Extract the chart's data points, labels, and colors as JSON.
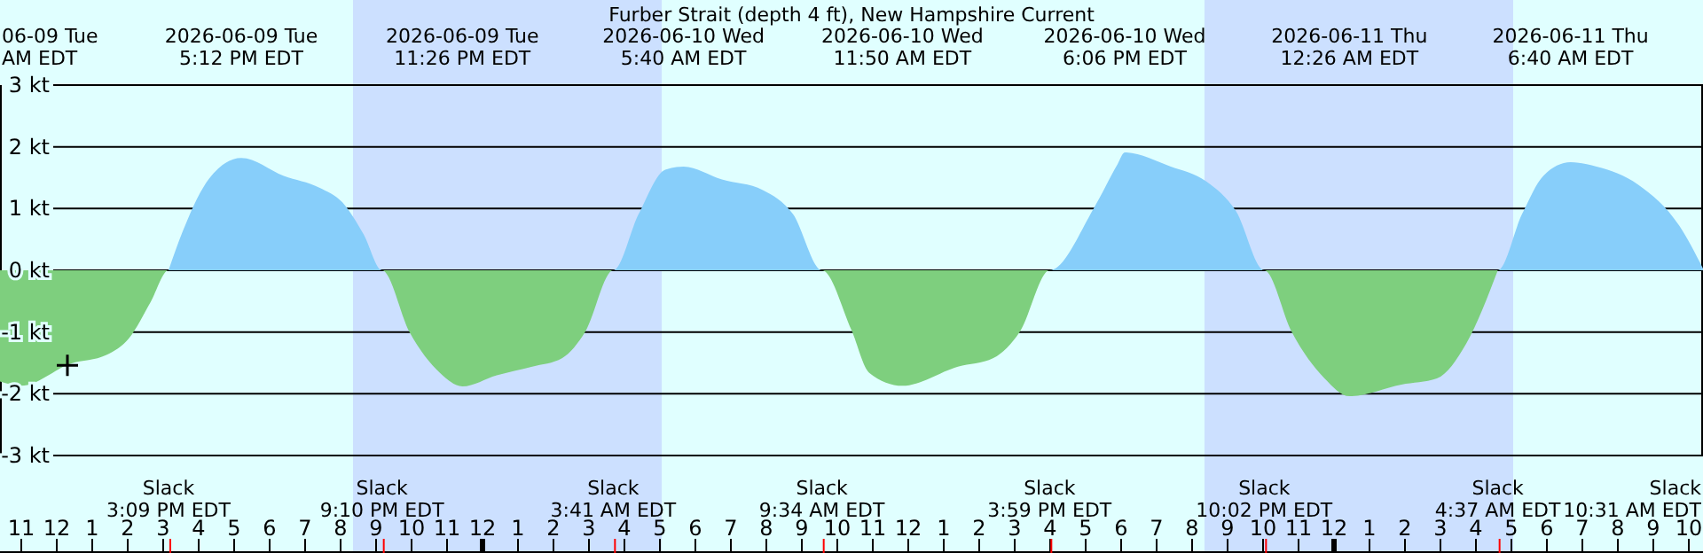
{
  "chart_data": {
    "type": "area",
    "title": "Furber Strait (depth 4 ft), New Hampshire Current",
    "xlim": [
      "2026-06-09T10:24",
      "2026-06-11T10:24"
    ],
    "ylim": [
      -3,
      3
    ],
    "xticks": [
      {
        "value": "2026-06-09T11:00",
        "label": "11"
      },
      {
        "value": "2026-06-09T12:00",
        "label": "12"
      },
      {
        "value": "2026-06-09T13:00",
        "label": "1"
      },
      {
        "value": "2026-06-09T14:00",
        "label": "2"
      },
      {
        "value": "2026-06-09T15:00",
        "label": "3"
      },
      {
        "value": "2026-06-09T16:00",
        "label": "4"
      },
      {
        "value": "2026-06-09T17:00",
        "label": "5"
      },
      {
        "value": "2026-06-09T18:00",
        "label": "6"
      },
      {
        "value": "2026-06-09T19:00",
        "label": "7"
      },
      {
        "value": "2026-06-09T20:00",
        "label": "8"
      },
      {
        "value": "2026-06-09T21:00",
        "label": "9"
      },
      {
        "value": "2026-06-09T22:00",
        "label": "10"
      },
      {
        "value": "2026-06-09T23:00",
        "label": "11"
      },
      {
        "value": "2026-06-10T00:00",
        "label": "12"
      },
      {
        "value": "2026-06-10T01:00",
        "label": "1"
      },
      {
        "value": "2026-06-10T02:00",
        "label": "2"
      },
      {
        "value": "2026-06-10T03:00",
        "label": "3"
      },
      {
        "value": "2026-06-10T04:00",
        "label": "4"
      },
      {
        "value": "2026-06-10T05:00",
        "label": "5"
      },
      {
        "value": "2026-06-10T06:00",
        "label": "6"
      },
      {
        "value": "2026-06-10T07:00",
        "label": "7"
      },
      {
        "value": "2026-06-10T08:00",
        "label": "8"
      },
      {
        "value": "2026-06-10T09:00",
        "label": "9"
      },
      {
        "value": "2026-06-10T10:00",
        "label": "10"
      },
      {
        "value": "2026-06-10T11:00",
        "label": "11"
      },
      {
        "value": "2026-06-10T12:00",
        "label": "12"
      },
      {
        "value": "2026-06-10T13:00",
        "label": "1"
      },
      {
        "value": "2026-06-10T14:00",
        "label": "2"
      },
      {
        "value": "2026-06-10T15:00",
        "label": "3"
      },
      {
        "value": "2026-06-10T16:00",
        "label": "4"
      },
      {
        "value": "2026-06-10T17:00",
        "label": "5"
      },
      {
        "value": "2026-06-10T18:00",
        "label": "6"
      },
      {
        "value": "2026-06-10T19:00",
        "label": "7"
      },
      {
        "value": "2026-06-10T20:00",
        "label": "8"
      },
      {
        "value": "2026-06-10T21:00",
        "label": "9"
      },
      {
        "value": "2026-06-10T22:00",
        "label": "10"
      },
      {
        "value": "2026-06-10T23:00",
        "label": "11"
      },
      {
        "value": "2026-06-11T00:00",
        "label": "12"
      },
      {
        "value": "2026-06-11T01:00",
        "label": "1"
      },
      {
        "value": "2026-06-11T02:00",
        "label": "2"
      },
      {
        "value": "2026-06-11T03:00",
        "label": "3"
      },
      {
        "value": "2026-06-11T04:00",
        "label": "4"
      },
      {
        "value": "2026-06-11T05:00",
        "label": "5"
      },
      {
        "value": "2026-06-11T06:00",
        "label": "6"
      },
      {
        "value": "2026-06-11T07:00",
        "label": "7"
      },
      {
        "value": "2026-06-11T08:00",
        "label": "8"
      },
      {
        "value": "2026-06-11T09:00",
        "label": "9"
      },
      {
        "value": "2026-06-11T10:00",
        "label": "10"
      }
    ],
    "x2lim": [
      "2026-06-09T10:24",
      "2026-06-11T10:24"
    ],
    "x2ticks": [
      {
        "value": "2026-06-09T17:12",
        "label": "2026-06-09 Tue\n5:12 PM EDT"
      },
      {
        "value": "2026-06-09T23:26",
        "label": "2026-06-09 Tue\n11:26 PM EDT"
      },
      {
        "value": "2026-06-10T05:40",
        "label": "2026-06-10 Wed\n5:40 AM EDT"
      },
      {
        "value": "2026-06-10T11:50",
        "label": "2026-06-10 Wed\n11:50 AM EDT"
      },
      {
        "value": "2026-06-10T18:06",
        "label": "2026-06-10 Wed\n6:06 PM EDT"
      },
      {
        "value": "2026-06-11T00:26",
        "label": "2026-06-11 Thu\n12:26 AM EDT"
      },
      {
        "value": "2026-06-11T06:40",
        "label": "2026-06-11 Thu\n6:40 AM EDT"
      }
    ],
    "yticks": [
      {
        "value": -3,
        "label": "-3 kt"
      },
      {
        "value": -2,
        "label": "-2 kt"
      },
      {
        "value": -1,
        "label": "-1 kt"
      },
      {
        "value": 0,
        "label": "0 kt"
      },
      {
        "value": 1,
        "label": "1 kt"
      },
      {
        "value": 2,
        "label": "2 kt"
      },
      {
        "value": 3,
        "label": "3 kt"
      }
    ],
    "grid": "y",
    "bands": [
      {
        "axis": "x",
        "from": "2026-06-09T20:21",
        "to": "2026-06-10T05:03",
        "color": "#cce0ff"
      },
      {
        "axis": "x",
        "from": "2026-06-10T20:21",
        "to": "2026-06-11T05:03",
        "color": "#cce0ff"
      }
    ],
    "series": [
      {
        "color": "#87cefa",
        "x": [
          "2026-06-09T15:09",
          "2026-06-09T15:33",
          "2026-06-09T16:18",
          "2026-06-09T17:12",
          "2026-06-09T18:24",
          "2026-06-09T19:24",
          "2026-06-09T20:03",
          "2026-06-09T20:39",
          "2026-06-09T21:10",
          "2026-06-10T03:41",
          "2026-06-10T04:24",
          "2026-06-10T05:09",
          "2026-06-10T05:40",
          "2026-06-10T06:45",
          "2026-06-10T07:54",
          "2026-06-10T08:45",
          "2026-06-10T09:34",
          "2026-06-10T15:59",
          "2026-06-10T17:14",
          "2026-06-10T17:54",
          "2026-06-10T18:06",
          "2026-06-10T19:24",
          "2026-06-10T20:24",
          "2026-06-10T21:14",
          "2026-06-10T22:02",
          "2026-06-11T04:37",
          "2026-06-11T05:18",
          "2026-06-11T05:54",
          "2026-06-11T06:40",
          "2026-06-11T07:24",
          "2026-06-11T08:34",
          "2026-06-11T09:44",
          "2026-06-11T10:24"
        ],
        "values": [
          0,
          0.63,
          1.49,
          1.82,
          1.53,
          1.34,
          1.1,
          0.58,
          0,
          0,
          0.91,
          1.63,
          1.68,
          1.47,
          1.3,
          0.91,
          0,
          0,
          1.01,
          1.72,
          1.91,
          1.68,
          1.44,
          0.96,
          0,
          0,
          0.91,
          1.53,
          1.75,
          1.68,
          1.39,
          0.72,
          0.03
        ]
      },
      {
        "color": "#7ecf7e",
        "x": [
          "2026-06-09T10:24",
          "2026-06-09T11:00",
          "2026-06-09T12:24",
          "2026-06-09T13:24",
          "2026-06-09T14:03",
          "2026-06-09T14:39",
          "2026-06-09T15:09",
          "2026-06-09T21:10",
          "2026-06-09T21:57",
          "2026-06-09T22:48",
          "2026-06-09T23:26",
          "2026-06-10T00:24",
          "2026-06-10T01:24",
          "2026-06-10T02:15",
          "2026-06-10T02:54",
          "2026-06-10T03:41",
          "2026-06-10T09:34",
          "2026-06-10T10:24",
          "2026-06-10T10:54",
          "2026-06-10T11:50",
          "2026-06-10T13:24",
          "2026-06-10T14:24",
          "2026-06-10T15:09",
          "2026-06-10T15:59",
          "2026-06-10T22:02",
          "2026-06-10T22:49",
          "2026-06-10T23:44",
          "2026-06-11T00:26",
          "2026-06-11T01:54",
          "2026-06-11T02:54",
          "2026-06-11T03:44",
          "2026-06-11T04:37"
        ],
        "values": [
          -1.8,
          -1.87,
          -1.51,
          -1.37,
          -1.09,
          -0.51,
          0,
          0,
          -1.01,
          -1.66,
          -1.88,
          -1.7,
          -1.56,
          -1.42,
          -0.99,
          0,
          0,
          -0.97,
          -1.66,
          -1.87,
          -1.56,
          -1.42,
          -0.99,
          0,
          0,
          -1.01,
          -1.75,
          -2.04,
          -1.85,
          -1.75,
          -1.18,
          0
        ]
      },
      {
        "type": "scatter",
        "marker": "cross",
        "color": "#000000",
        "x": [
          "2026-06-09T12:18"
        ],
        "values": [
          -1.54
        ]
      }
    ],
    "annotations": [
      "06-09 Tue\nAM EDT",
      "Slack\n10:31 AM EDT",
      {
        "text": "Slack\n3:09 PM EDT",
        "x": "2026-06-09T15:09"
      },
      {
        "text": "Slack\n9:10 PM EDT",
        "x": "2026-06-09T21:10"
      },
      {
        "text": "Slack\n3:41 AM EDT",
        "x": "2026-06-10T03:41"
      },
      {
        "text": "Slack\n9:34 AM EDT",
        "x": "2026-06-10T09:34"
      },
      {
        "text": "Slack\n3:59 PM EDT",
        "x": "2026-06-10T15:59"
      },
      {
        "text": "Slack\n10:02 PM EDT",
        "x": "2026-06-10T22:02"
      },
      {
        "text": "Slack\n4:37 AM EDT",
        "x": "2026-06-11T04:37"
      }
    ]
  }
}
